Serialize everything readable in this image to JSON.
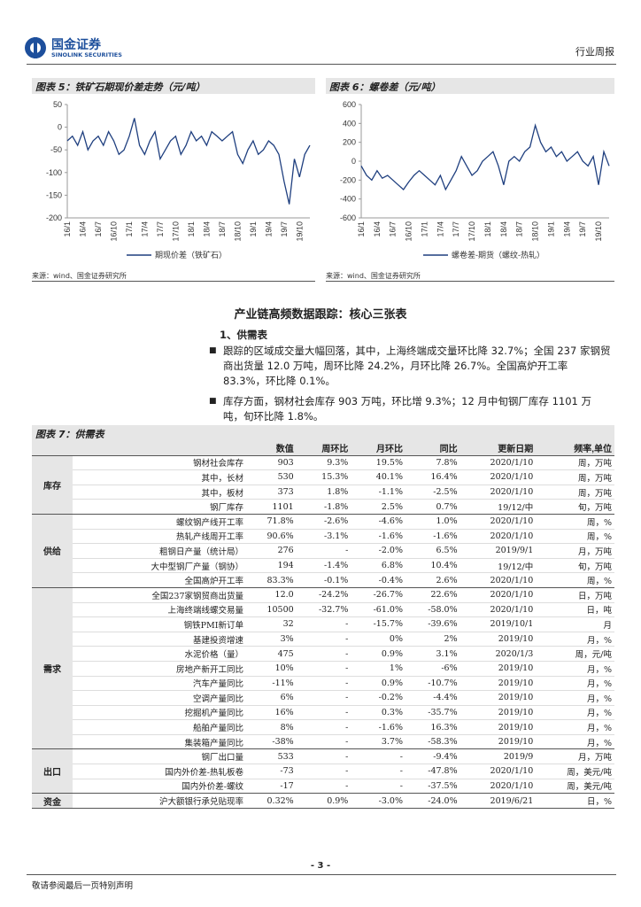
{
  "header": {
    "logo_cn": "国金证券",
    "logo_en": "SINOLINK SECURITIES",
    "report_type": "行业周报"
  },
  "chart_data": [
    {
      "type": "line",
      "title": "图表 5：铁矿石期现价差走势（元/吨）",
      "source": "来源：wind、国金证券研究所",
      "categories": [
        "16/1",
        null,
        null,
        "16/4",
        null,
        null,
        "16/7",
        null,
        null,
        "16/10",
        null,
        null,
        "17/1",
        null,
        null,
        "17/4",
        null,
        null,
        "17/7",
        null,
        null,
        "17/10",
        null,
        null,
        "18/1",
        null,
        null,
        "18/4",
        null,
        null,
        "18/7",
        null,
        null,
        "18/10",
        null,
        null,
        "19/1",
        null,
        null,
        "19/4",
        null,
        null,
        "19/7",
        null,
        null,
        "19/10",
        null,
        null
      ],
      "series": [
        {
          "name": "期现价差（铁矿石）",
          "color": "#1f3f7f",
          "values": [
            -30,
            -20,
            -40,
            -10,
            -50,
            -30,
            -20,
            -40,
            -10,
            -30,
            -60,
            -50,
            -20,
            20,
            -40,
            -60,
            -30,
            -10,
            -70,
            -50,
            -30,
            -20,
            -60,
            -40,
            -10,
            -30,
            -20,
            -40,
            -10,
            -20,
            -30,
            -20,
            -10,
            -60,
            -80,
            -50,
            -30,
            -60,
            -50,
            -30,
            -40,
            -60,
            -120,
            -170,
            -70,
            -110,
            -60,
            -40
          ]
        }
      ],
      "ylim": [
        -200,
        50
      ],
      "yticks": [
        50,
        0,
        -50,
        -100,
        -150,
        -200
      ]
    },
    {
      "type": "line",
      "title": "图表 6：螺卷差（元/吨）",
      "source": "来源：wind、国金证券研究所",
      "categories": [
        "16/1",
        null,
        null,
        "16/4",
        null,
        null,
        "16/7",
        null,
        null,
        "16/10",
        null,
        null,
        "17/1",
        null,
        null,
        "17/4",
        null,
        null,
        "17/7",
        null,
        null,
        "17/10",
        null,
        null,
        "18/1",
        null,
        null,
        "18/4",
        null,
        null,
        "18/7",
        null,
        null,
        "18/10",
        null,
        null,
        "19/1",
        null,
        null,
        "19/4",
        null,
        null,
        "19/7",
        null,
        null,
        "19/10",
        null,
        null
      ],
      "series": [
        {
          "name": "螺卷差-期货（螺纹-热轧）",
          "color": "#1f3f7f",
          "values": [
            -50,
            -150,
            -200,
            -100,
            -180,
            -150,
            -200,
            -250,
            -300,
            -220,
            -150,
            -100,
            -150,
            -200,
            -250,
            -150,
            -300,
            -200,
            -100,
            50,
            -50,
            -150,
            -100,
            0,
            50,
            100,
            -50,
            -250,
            0,
            50,
            0,
            100,
            150,
            380,
            200,
            100,
            150,
            50,
            100,
            0,
            50,
            100,
            0,
            -50,
            50,
            -250,
            100,
            -50
          ]
        }
      ],
      "ylim": [
        -600,
        600
      ],
      "yticks": [
        600,
        400,
        200,
        0,
        -200,
        -400,
        -600
      ]
    }
  ],
  "section": {
    "title": "产业链高频数据跟踪：核心三张表",
    "subtitle": "1、供需表",
    "bullets": [
      "跟踪的区域成交量大幅回落，其中，上海终端成交量环比降 32.7%；全国 237 家钢贸商出货量 12.0 万吨，周环比降 24.2%，月环比降 26.7%。全国高炉开工率 83.3%，环比降 0.1%。",
      "库存方面，钢材社会库存 903 万吨，环比增 9.3%；12 月中旬钢厂库存 1101 万吨，旬环比降 1.8%。"
    ]
  },
  "table": {
    "title": "图表 7：供需表",
    "columns": [
      "数值",
      "周环比",
      "月环比",
      "同比",
      "更新日期",
      "频率,单位"
    ],
    "groups": [
      {
        "name": "库存",
        "rows": [
          [
            "钢材社会库存",
            "903",
            "9.3%",
            "19.5%",
            "7.8%",
            "2020/1/10",
            "周，万吨"
          ],
          [
            "其中，长材",
            "530",
            "15.3%",
            "40.1%",
            "16.4%",
            "2020/1/10",
            "周，万吨"
          ],
          [
            "其中，板材",
            "373",
            "1.8%",
            "-1.1%",
            "-2.5%",
            "2020/1/10",
            "周，万吨"
          ],
          [
            "钢厂库存",
            "1101",
            "-1.8%",
            "2.5%",
            "0.7%",
            "19/12/中",
            "旬，万吨"
          ]
        ]
      },
      {
        "name": "供给",
        "rows": [
          [
            "螺纹钢产线开工率",
            "71.8%",
            "-2.6%",
            "-4.6%",
            "1.0%",
            "2020/1/10",
            "周，%"
          ],
          [
            "热轧产线周开工率",
            "90.6%",
            "-3.1%",
            "-1.6%",
            "-1.6%",
            "2020/1/10",
            "周，%"
          ],
          [
            "粗钢日产量（统计局）",
            "276",
            "-",
            "-2.0%",
            "6.5%",
            "2019/9/1",
            "月，万吨"
          ],
          [
            "大中型钢厂产量（钢协）",
            "194",
            "-1.4%",
            "6.8%",
            "10.4%",
            "19/12/中",
            "旬，万吨"
          ],
          [
            "全国高炉开工率",
            "83.3%",
            "-0.1%",
            "-0.4%",
            "2.6%",
            "2020/1/10",
            "周，%"
          ]
        ]
      },
      {
        "name": "需求",
        "rows": [
          [
            "全国237家钢贸商出货量",
            "12.0",
            "-24.2%",
            "-26.7%",
            "22.6%",
            "2020/1/10",
            "日，万吨"
          ],
          [
            "上海终端线螺交易量",
            "10500",
            "-32.7%",
            "-61.0%",
            "-58.0%",
            "2020/1/10",
            "日，吨"
          ],
          [
            "钢铁PMI新订单",
            "32",
            "-",
            "-15.7%",
            "-39.6%",
            "2019/10/1",
            "月"
          ],
          [
            "基建投资增速",
            "3%",
            "-",
            "0%",
            "2%",
            "2019/10",
            "月，%"
          ],
          [
            "水泥价格（量）",
            "475",
            "-",
            "0.9%",
            "3.1%",
            "2020/1/3",
            "周，元/吨"
          ],
          [
            "房地产新开工同比",
            "10%",
            "-",
            "1%",
            "-6%",
            "2019/10",
            "月，%"
          ],
          [
            "汽车产量同比",
            "-11%",
            "-",
            "0.9%",
            "-10.7%",
            "2019/10",
            "月，%"
          ],
          [
            "空调产量同比",
            "6%",
            "-",
            "-0.2%",
            "-4.4%",
            "2019/10",
            "月，%"
          ],
          [
            "挖掘机产量同比",
            "16%",
            "-",
            "0.3%",
            "-35.7%",
            "2019/10",
            "月，%"
          ],
          [
            "船舶产量同比",
            "8%",
            "-",
            "-1.6%",
            "16.3%",
            "2019/10",
            "月，%"
          ],
          [
            "集装箱产量同比",
            "-38%",
            "-",
            "3.7%",
            "-58.3%",
            "2019/10",
            "月，%"
          ]
        ]
      },
      {
        "name": "出口",
        "rows": [
          [
            "钢厂出口量",
            "533",
            "-",
            "-",
            "-9.4%",
            "2019/9",
            "月，万吨"
          ],
          [
            "国内外价差-热轧板卷",
            "-73",
            "-",
            "-",
            "-47.8%",
            "2020/1/10",
            "周，美元/吨"
          ],
          [
            "国内外价差-螺纹",
            "-17",
            "-",
            "-",
            "-37.5%",
            "2020/1/10",
            "周，美元/吨"
          ]
        ]
      },
      {
        "name": "资金",
        "rows": [
          [
            "沪大额银行承兑贴现率",
            "0.32%",
            "0.9%",
            "-3.0%",
            "-24.0%",
            "2019/6/21",
            "日，%"
          ]
        ]
      }
    ]
  },
  "footer": {
    "page": "- 3 -",
    "disclaimer": "敬请参阅最后一页特别声明"
  }
}
